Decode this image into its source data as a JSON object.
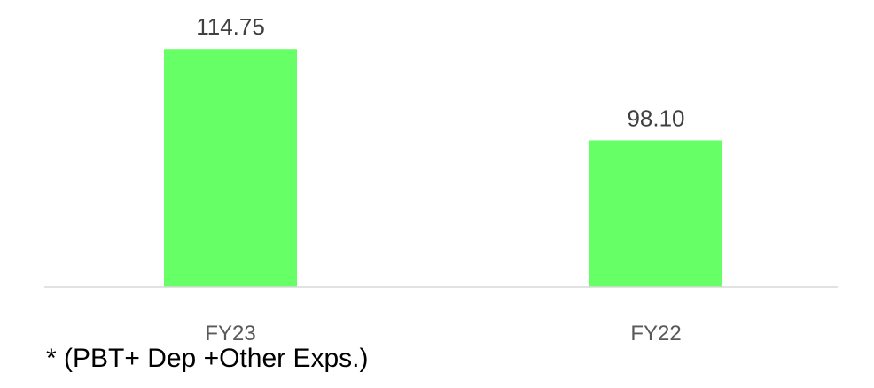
{
  "chart_data": {
    "type": "bar",
    "categories": [
      "FY23",
      "FY22"
    ],
    "values": [
      114.75,
      98.1
    ],
    "data_labels": [
      "114.75",
      "98.10"
    ],
    "title": "",
    "xlabel": "",
    "ylabel": "",
    "ylim": [
      0,
      120
    ],
    "grid": false,
    "legend": "none",
    "bar_color": "#66FF66",
    "axis_color": "#D9D9D9"
  },
  "footnote": "* (PBT+ Dep +Other Exps.)"
}
